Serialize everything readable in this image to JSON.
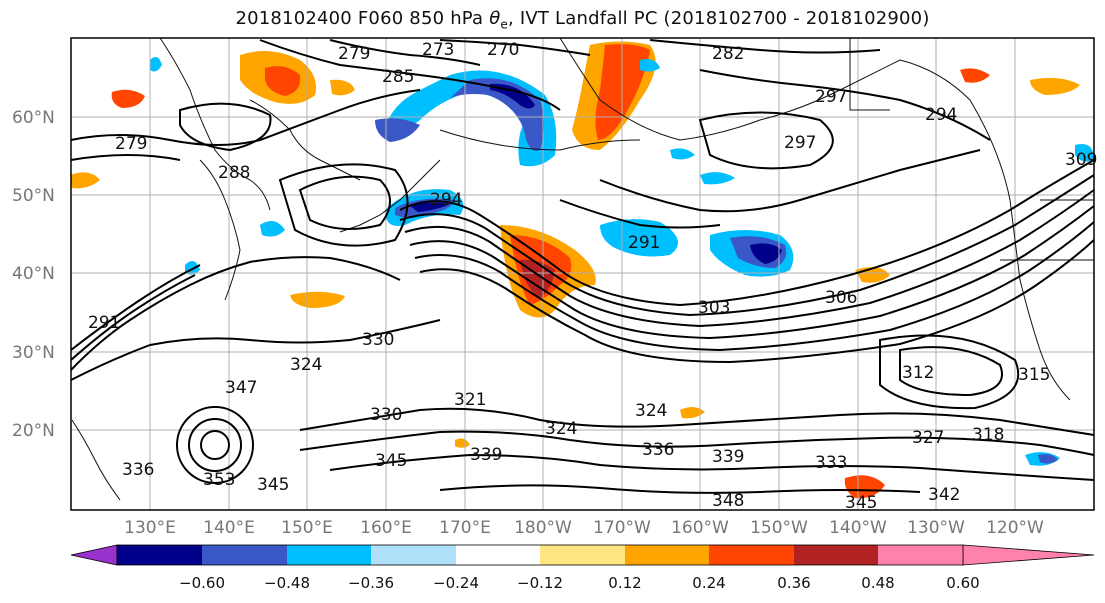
{
  "title": {
    "prefix": "2018102400 F060 850 hPa ",
    "theta": "θ",
    "sub": "e",
    "suffix": ", IVT Landfall PC (2018102700 - 2018102900)"
  },
  "map": {
    "lat_ticks": [
      "60°N",
      "50°N",
      "40°N",
      "30°N",
      "20°N"
    ],
    "lon_ticks": [
      "130°E",
      "140°E",
      "150°E",
      "160°E",
      "170°E",
      "180°W",
      "170°W",
      "160°W",
      "150°W",
      "140°W",
      "130°W",
      "120°W"
    ],
    "contour_labels": [
      "270",
      "273",
      "279",
      "279",
      "282",
      "285",
      "288",
      "291",
      "291",
      "294",
      "294",
      "297",
      "297",
      "303",
      "306",
      "309",
      "312",
      "315",
      "318",
      "321",
      "324",
      "324",
      "324",
      "327",
      "330",
      "330",
      "333",
      "336",
      "336",
      "339",
      "339",
      "342",
      "345",
      "345",
      "345",
      "347",
      "348",
      "353"
    ]
  },
  "colorbar": {
    "colors": [
      "#9932cc",
      "#00008b",
      "#3a57c8",
      "#00bfff",
      "#b0e0fa",
      "#ffffff",
      "#ffe680",
      "#ffa500",
      "#ff4500",
      "#b22222",
      "#ff82ab"
    ],
    "tick_labels": [
      "−0.60",
      "−0.48",
      "−0.36",
      "−0.24",
      "−0.12",
      "0.12",
      "0.24",
      "0.36",
      "0.48",
      "0.60"
    ],
    "bounds": [
      -0.6,
      -0.48,
      -0.36,
      -0.24,
      -0.12,
      0.12,
      0.24,
      0.36,
      0.48,
      0.6
    ]
  },
  "colors": {
    "neg_strong": "#00008b",
    "neg_mid": "#3a57c8",
    "neg_light": "#00bfff",
    "pos_light": "#ffa500",
    "pos_mid": "#ff4500",
    "pos_strong": "#b22222"
  }
}
